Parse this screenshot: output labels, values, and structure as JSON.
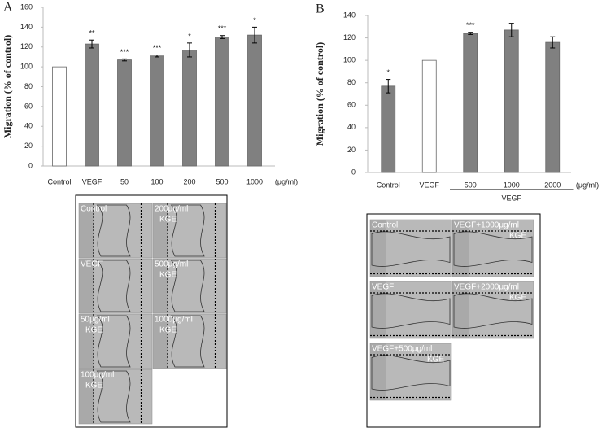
{
  "chart_data": [
    {
      "type": "bar",
      "panel": "A",
      "y_label": "Migration (% of control)",
      "categories": [
        "Control",
        "VEGF",
        "50",
        "100",
        "200",
        "500",
        "1000"
      ],
      "values": [
        100,
        123,
        107,
        111,
        117,
        130,
        132
      ],
      "errors": [
        null,
        4,
        1,
        1,
        7,
        1.5,
        8
      ],
      "annotations": [
        null,
        "**",
        "***",
        "***",
        "*",
        "***",
        "*"
      ],
      "colors": [
        "#ffffff",
        "#808080",
        "#808080",
        "#808080",
        "#808080",
        "#808080",
        "#808080"
      ],
      "unit_label": "(μg/ml)",
      "ylim": [
        0,
        160
      ],
      "yticks": [
        0,
        20,
        40,
        60,
        80,
        100,
        120,
        140,
        160
      ]
    },
    {
      "type": "bar",
      "panel": "B",
      "y_label": "Migration (% of control)",
      "categories": [
        "Control",
        "VEGF",
        "500",
        "1000",
        "2000"
      ],
      "values": [
        77,
        100,
        124,
        127,
        116
      ],
      "errors": [
        6,
        null,
        1,
        6,
        5
      ],
      "annotations": [
        "*",
        null,
        "***",
        null,
        null
      ],
      "colors": [
        "#808080",
        "#ffffff",
        "#808080",
        "#808080",
        "#808080"
      ],
      "unit_label": "(μg/ml)",
      "group_label": "VEGF",
      "ylim": [
        0,
        140
      ],
      "yticks": [
        0,
        20,
        40,
        60,
        80,
        100,
        120,
        140
      ]
    }
  ],
  "image_panels": [
    {
      "cells": [
        [
          "Control"
        ],
        [
          "200μg/ml",
          "KGE"
        ],
        [
          "VEGF"
        ],
        [
          "500μg/ml",
          "KGE"
        ],
        [
          "50μg/ml",
          "KGE"
        ],
        [
          "1000μg/ml",
          "KGE"
        ],
        [
          "100μg/ml",
          "KGE"
        ]
      ]
    },
    {
      "cells": [
        [
          "Control"
        ],
        [
          "VEGF+1000μg/ml",
          "KGE"
        ],
        [
          "VEGF"
        ],
        [
          "VEGF+2000μg/ml",
          "KGE"
        ],
        [
          "VEGF+500μg/ml",
          "KGE"
        ]
      ]
    }
  ]
}
